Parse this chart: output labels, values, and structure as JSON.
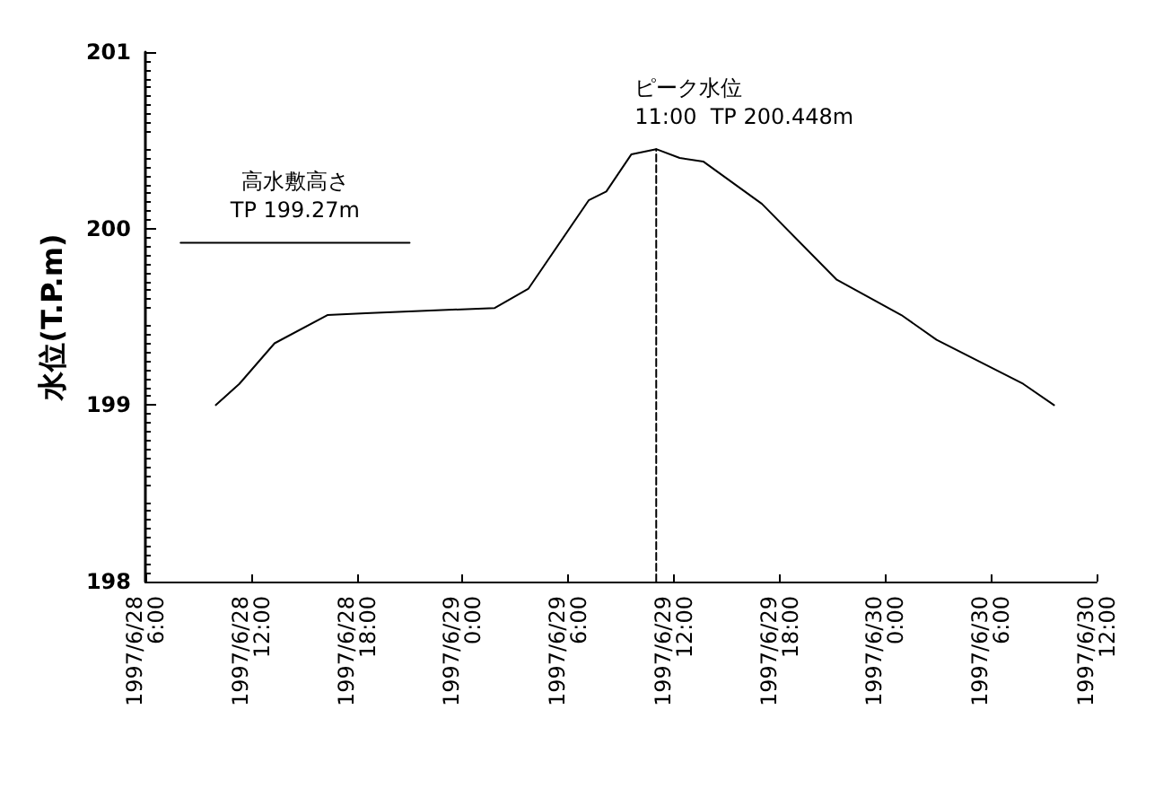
{
  "chart_data": {
    "type": "line",
    "ylabel": "水位(T.P.m)",
    "xlim": [
      "1997-06-28T06:00",
      "1997-06-30T12:00"
    ],
    "xticks": [
      {
        "value": "1997-06-28T06:00",
        "label": "1997/6/28 6:00"
      },
      {
        "value": "1997-06-28T12:00",
        "label": "1997/6/28 12:00"
      },
      {
        "value": "1997-06-28T18:00",
        "label": "1997/6/28 18:00"
      },
      {
        "value": "1997-06-29T00:00",
        "label": "1997/6/29 0:00"
      },
      {
        "value": "1997-06-29T06:00",
        "label": "1997/6/29 6:00"
      },
      {
        "value": "1997-06-29T12:00",
        "label": "1997/6/29 12:00"
      },
      {
        "value": "1997-06-29T18:00",
        "label": "1997/6/29 18:00"
      },
      {
        "value": "1997-06-30T00:00",
        "label": "1997/6/30 0:00"
      },
      {
        "value": "1997-06-30T06:00",
        "label": "1997/6/30 6:00"
      },
      {
        "value": "1997-06-30T12:00",
        "label": "1997/6/30 12:00"
      }
    ],
    "ylim": [
      198,
      201
    ],
    "yticks": [
      198,
      199,
      200,
      201
    ],
    "grid": false,
    "marker": "none",
    "series": [
      {
        "color": "#000000",
        "line_style": "solid",
        "x": [
          "1997-06-28T10:00",
          "1997-06-28T11:20",
          "1997-06-28T13:20",
          "1997-06-28T16:20",
          "1997-06-28T18:30",
          "1997-06-29T01:50",
          "1997-06-29T03:45",
          "1997-06-29T07:10",
          "1997-06-29T08:10",
          "1997-06-29T09:35",
          "1997-06-29T11:00",
          "1997-06-29T12:20",
          "1997-06-29T13:40",
          "1997-06-29T17:00",
          "1997-06-29T21:15",
          "1997-06-30T00:55",
          "1997-06-30T02:55",
          "1997-06-30T07:50",
          "1997-06-30T09:35"
        ],
        "values": [
          199.0,
          199.12,
          199.35,
          199.51,
          199.52,
          199.55,
          199.66,
          200.16,
          200.21,
          200.42,
          200.45,
          200.4,
          200.38,
          200.14,
          199.71,
          199.51,
          199.37,
          199.12,
          199.0
        ]
      },
      {
        "color": "#000000",
        "line_style": "solid",
        "x": [
          "1997-06-28T08:00",
          "1997-06-28T21:00"
        ],
        "values": [
          199.92,
          199.92
        ]
      },
      {
        "color": "#000000",
        "line_style": "dashed",
        "x": [
          "1997-06-29T11:00",
          "1997-06-29T11:00"
        ],
        "values": [
          198,
          200.45
        ]
      }
    ],
    "annotations": [
      {
        "text": "高水敷高さ\nTP 199.27m",
        "x": "1997-06-28T14:30",
        "y": 199.92
      },
      {
        "text": "ピーク水位\n11:00  TP 200.448m",
        "x": "1997-06-29T11:00",
        "y": 200.45
      }
    ]
  }
}
